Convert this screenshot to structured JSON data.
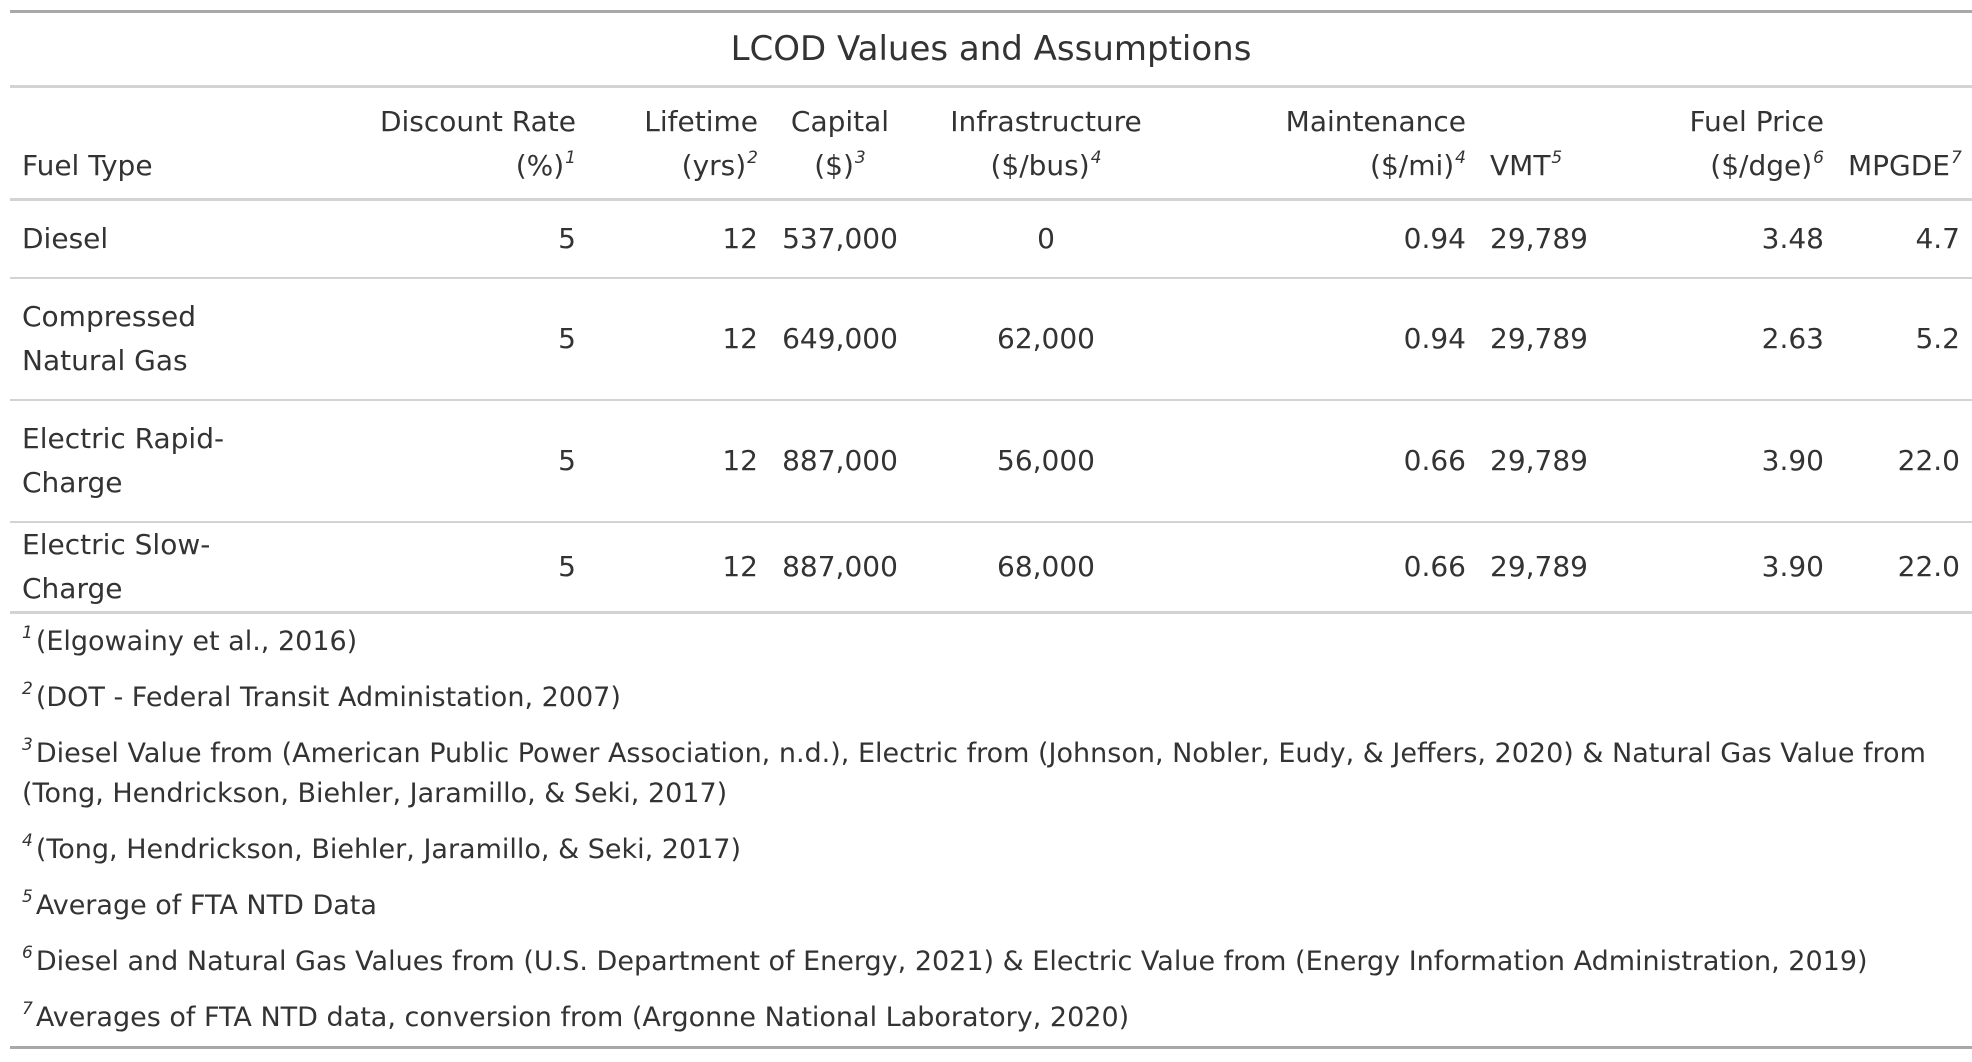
{
  "title": "LCOD Values and Assumptions",
  "columns": [
    {
      "label": "Fuel Type",
      "unit": "",
      "ref": ""
    },
    {
      "label": "Discount Rate",
      "unit": "(%)",
      "ref": "1"
    },
    {
      "label": "Lifetime",
      "unit": "(yrs)",
      "ref": "2"
    },
    {
      "label": "Capital",
      "unit": "($)",
      "ref": "3"
    },
    {
      "label": "Infrastructure",
      "unit": "($/bus)",
      "ref": "4"
    },
    {
      "label": "Maintenance",
      "unit": "($/mi)",
      "ref": "4"
    },
    {
      "label": "VMT",
      "unit": "",
      "ref": "5"
    },
    {
      "label": "Fuel Price",
      "unit": "($/dge)",
      "ref": "6"
    },
    {
      "label": "MPGDE",
      "unit": "",
      "ref": "7"
    }
  ],
  "rows": [
    {
      "fuel_type": "Diesel",
      "discount_rate": "5",
      "lifetime": "12",
      "capital": "537,000",
      "infrastructure": "0",
      "maintenance": "0.94",
      "vmt": "29,789",
      "fuel_price": "3.48",
      "mpgde": "4.7"
    },
    {
      "fuel_type": "Compressed Natural Gas",
      "discount_rate": "5",
      "lifetime": "12",
      "capital": "649,000",
      "infrastructure": "62,000",
      "maintenance": "0.94",
      "vmt": "29,789",
      "fuel_price": "2.63",
      "mpgde": "5.2"
    },
    {
      "fuel_type": "Electric Rapid-Charge",
      "discount_rate": "5",
      "lifetime": "12",
      "capital": "887,000",
      "infrastructure": "56,000",
      "maintenance": "0.66",
      "vmt": "29,789",
      "fuel_price": "3.90",
      "mpgde": "22.0"
    },
    {
      "fuel_type": "Electric Slow-Charge",
      "discount_rate": "5",
      "lifetime": "12",
      "capital": "887,000",
      "infrastructure": "68,000",
      "maintenance": "0.66",
      "vmt": "29,789",
      "fuel_price": "3.90",
      "mpgde": "22.0"
    }
  ],
  "footnotes": [
    {
      "mark": "1",
      "text": "(Elgowainy et al., 2016)"
    },
    {
      "mark": "2",
      "text": "(DOT - Federal Transit Administation, 2007)"
    },
    {
      "mark": "3",
      "text": "Diesel Value from (American Public Power Association, n.d.), Electric from (Johnson, Nobler, Eudy, & Jeffers, 2020) & Natural Gas Value from (Tong, Hendrickson, Biehler, Jaramillo, & Seki, 2017)"
    },
    {
      "mark": "4",
      "text": "(Tong, Hendrickson, Biehler, Jaramillo, & Seki, 2017)"
    },
    {
      "mark": "5",
      "text": "Average of FTA NTD Data"
    },
    {
      "mark": "6",
      "text": "Diesel and Natural Gas Values from (U.S. Department of Energy, 2021) & Electric Value from (Energy Information Administration, 2019)"
    },
    {
      "mark": "7",
      "text": "Averages of FTA NTD data, conversion from (Argonne National Laboratory, 2020)"
    }
  ]
}
